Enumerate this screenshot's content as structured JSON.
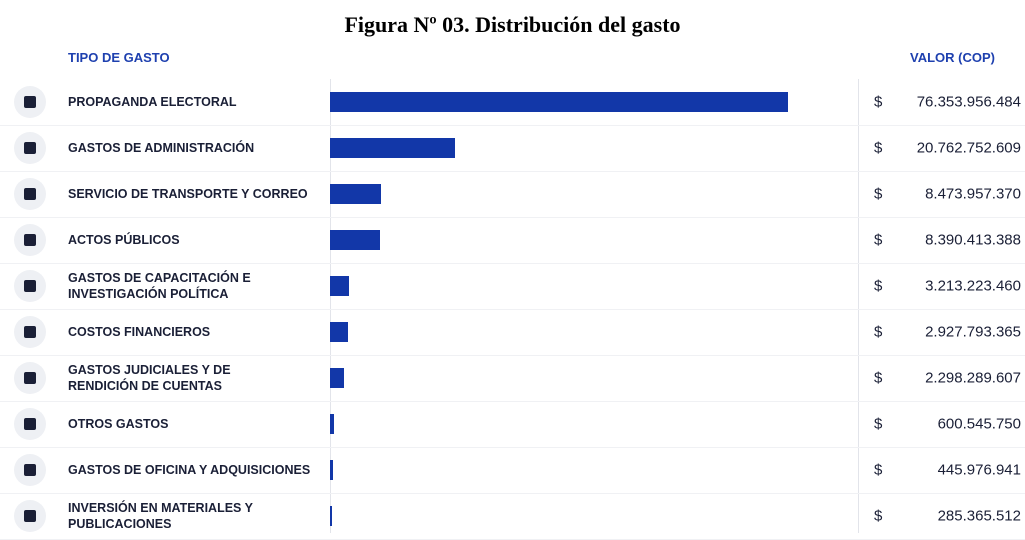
{
  "chart_data": {
    "type": "bar",
    "orientation": "horizontal",
    "title": "Figura Nº 03. Distribución del gasto",
    "category_header": "TIPO DE GASTO",
    "value_header": "VALOR (COP)",
    "currency_symbol": "$",
    "color": "#1237a8",
    "xlim": [
      0,
      88000000000
    ],
    "categories": [
      "PROPAGANDA ELECTORAL",
      "GASTOS DE ADMINISTRACIÓN",
      "SERVICIO DE TRANSPORTE Y CORREO",
      "ACTOS PÚBLICOS",
      "GASTOS DE CAPACITACIÓN E\nINVESTIGACIÓN POLÍTICA",
      "COSTOS FINANCIEROS",
      "GASTOS JUDICIALES Y DE\nRENDICIÓN DE CUENTAS",
      "OTROS GASTOS",
      "GASTOS DE OFICINA Y ADQUISICIONES",
      "INVERSIÓN EN MATERIALES Y\nPUBLICACIONES"
    ],
    "values": [
      76353956484,
      20762752609,
      8473957370,
      8390413388,
      3213223460,
      2927793365,
      2298289607,
      600545750,
      445976941,
      285365512
    ],
    "value_labels": [
      "76.353.956.484",
      "20.762.752.609",
      "8.473.957.370",
      "8.390.413.388",
      "3.213.223.460",
      "2.927.793.365",
      "2.298.289.607",
      "600.545.750",
      "445.976.941",
      "285.365.512"
    ]
  }
}
